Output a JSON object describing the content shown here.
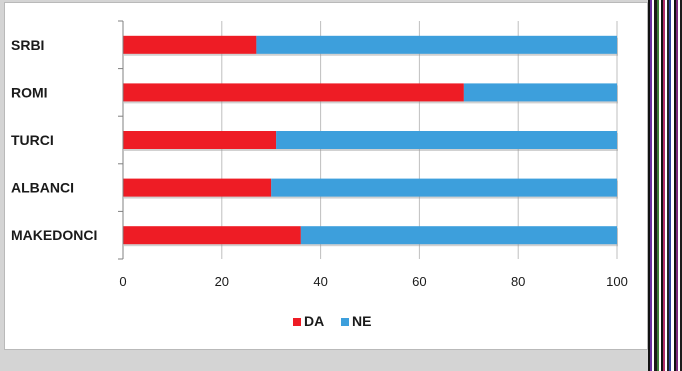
{
  "chart_data": {
    "type": "bar",
    "orientation": "horizontal",
    "stacked": true,
    "categories": [
      "SRBI",
      "ROMI",
      "TURCI",
      "ALBANCI",
      "MAKEDONCI"
    ],
    "series": [
      {
        "name": "DA",
        "color": "#ee1c25",
        "values": [
          27,
          69,
          31,
          30,
          36
        ]
      },
      {
        "name": "NE",
        "color": "#3d9fdc",
        "values": [
          73,
          31,
          69,
          70,
          64
        ]
      }
    ],
    "xlim": [
      0,
      100
    ],
    "xticks": [
      "0",
      "20",
      "40",
      "60",
      "80",
      "100"
    ],
    "grid": "vertical",
    "legend": "bottom-center"
  },
  "decor": {
    "stripe_colors": [
      "#111111",
      "#6b2fa0",
      "#ffffff",
      "#1a1a1a",
      "#3e7d3a",
      "#ffffff",
      "#111111",
      "#b0306a",
      "#ffffff",
      "#222222",
      "#2f3f9c",
      "#ffffff",
      "#111111",
      "#7a2a7a",
      "#ffffff",
      "#1d1d1d"
    ]
  }
}
